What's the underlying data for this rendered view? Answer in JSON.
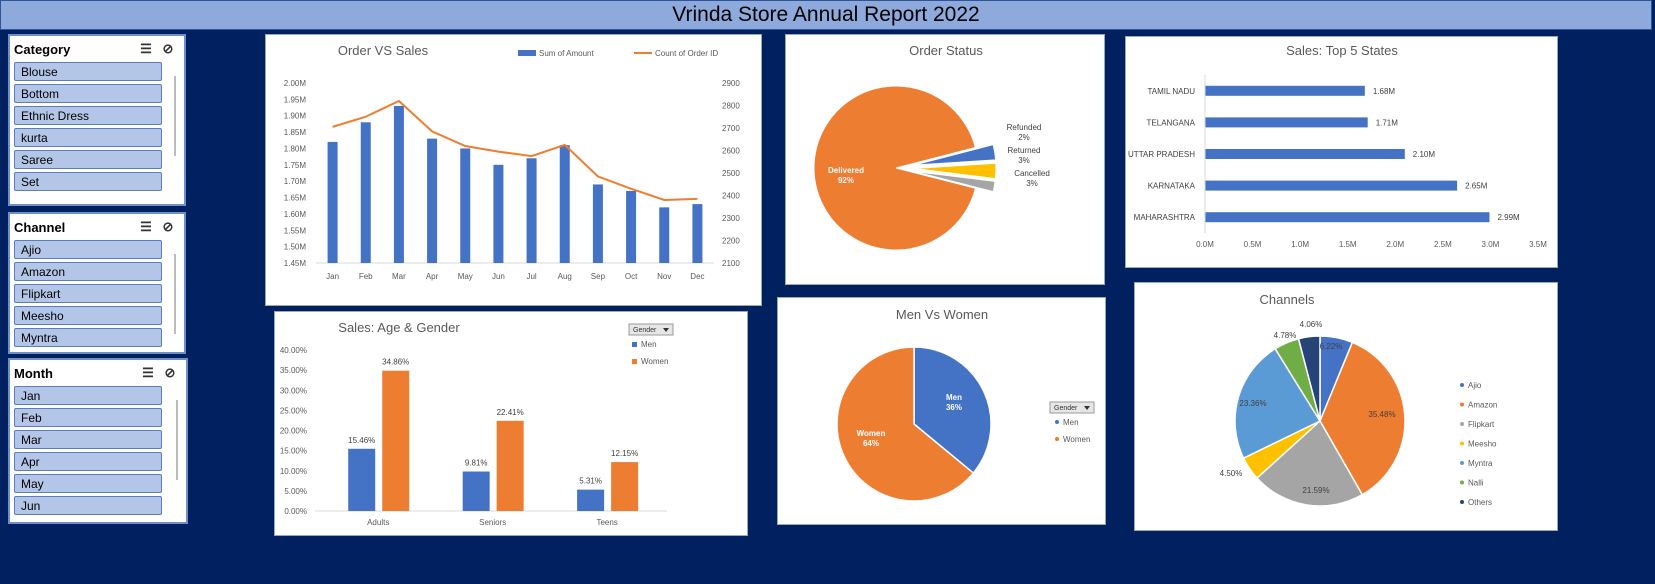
{
  "report_title": "Vrinda Store Annual Report 2022",
  "slicers": [
    {
      "title": "Category",
      "items": [
        "Blouse",
        "Bottom",
        "Ethnic Dress",
        "kurta",
        "Saree",
        "Set"
      ]
    },
    {
      "title": "Channel",
      "items": [
        "Ajio",
        "Amazon",
        "Flipkart",
        "Meesho",
        "Myntra"
      ]
    },
    {
      "title": "Month",
      "items": [
        "Jan",
        "Feb",
        "Mar",
        "Apr",
        "May",
        "Jun"
      ]
    }
  ],
  "slicer_icons": {
    "multi_select": "multi-select-icon",
    "clear_filter": "clear-filter-icon"
  },
  "colors": {
    "blue": "#4472C4",
    "orange": "#ED7D31",
    "gray": "#A5A5A5",
    "yellow": "#FFC000",
    "lightblue": "#5B9BD5",
    "green": "#70AD47",
    "navy": "#264478"
  },
  "chart_data": [
    {
      "id": "order_vs_sales",
      "type": "bar",
      "title": "Order VS Sales",
      "categories": [
        "Jan",
        "Feb",
        "Mar",
        "Apr",
        "May",
        "Jun",
        "Jul",
        "Aug",
        "Sep",
        "Oct",
        "Nov",
        "Dec"
      ],
      "series": [
        {
          "name": "Sum of Amount",
          "type": "bar",
          "axis": "left",
          "values": [
            1.82,
            1.88,
            1.93,
            1.83,
            1.8,
            1.75,
            1.77,
            1.81,
            1.69,
            1.67,
            1.62,
            1.63
          ]
        },
        {
          "name": "Count of Order ID",
          "type": "line",
          "axis": "right",
          "values": [
            2705,
            2750,
            2820,
            2685,
            2620,
            2595,
            2575,
            2625,
            2485,
            2430,
            2380,
            2385
          ]
        }
      ],
      "y_ticks": [
        "2.00M",
        "1.95M",
        "1.90M",
        "1.85M",
        "1.80M",
        "1.75M",
        "1.70M",
        "1.65M",
        "1.60M",
        "1.55M",
        "1.50M",
        "1.45M"
      ],
      "ylim": [
        1.45,
        2.0
      ],
      "y2_ticks": [
        "2900",
        "2800",
        "2700",
        "2600",
        "2500",
        "2400",
        "2300",
        "2200",
        "2100"
      ],
      "y2lim": [
        2100,
        2900
      ],
      "legend": "top-right"
    },
    {
      "id": "order_status",
      "type": "pie",
      "title": "Order Status",
      "slices": [
        {
          "name": "Delivered",
          "value": 92,
          "label": "92%"
        },
        {
          "name": "Refunded",
          "value": 2,
          "label": "2%"
        },
        {
          "name": "Returned",
          "value": 3,
          "label": "3%"
        },
        {
          "name": "Cancelled",
          "value": 3,
          "label": "3%"
        }
      ]
    },
    {
      "id": "top_states",
      "type": "bar",
      "orientation": "horizontal",
      "title": "Sales: Top 5 States",
      "categories": [
        "TAMIL NADU",
        "TELANGANA",
        "UTTAR PRADESH",
        "KARNATAKA",
        "MAHARASHTRA"
      ],
      "values": [
        1.68,
        1.71,
        2.1,
        2.65,
        2.99
      ],
      "data_labels": [
        "1.68M",
        "1.71M",
        "2.10M",
        "2.65M",
        "2.99M"
      ],
      "x_ticks": [
        "0.0M",
        "0.5M",
        "1.0M",
        "1.5M",
        "2.0M",
        "2.5M",
        "3.0M",
        "3.5M"
      ],
      "xlim": [
        0,
        3.5
      ]
    },
    {
      "id": "age_gender",
      "type": "bar",
      "title": "Sales: Age & Gender",
      "categories": [
        "Adults",
        "Seniors",
        "Teens"
      ],
      "series": [
        {
          "name": "Men",
          "values": [
            15.46,
            9.81,
            5.31
          ],
          "labels": [
            "15.46%",
            "9.81%",
            "5.31%"
          ]
        },
        {
          "name": "Women",
          "values": [
            34.86,
            22.41,
            12.15
          ],
          "labels": [
            "34.86%",
            "22.41%",
            "12.15%"
          ]
        }
      ],
      "y_ticks": [
        "40.00%",
        "35.00%",
        "30.00%",
        "25.00%",
        "20.00%",
        "15.00%",
        "10.00%",
        "5.00%",
        "0.00%"
      ],
      "ylim": [
        0,
        40
      ],
      "filter_label": "Gender",
      "legend": "top-right"
    },
    {
      "id": "men_vs_women",
      "type": "pie",
      "title": "Men Vs Women",
      "slices": [
        {
          "name": "Men",
          "value": 36,
          "label": "36%"
        },
        {
          "name": "Women",
          "value": 64,
          "label": "64%"
        }
      ],
      "filter_label": "Gender",
      "legend": "right"
    },
    {
      "id": "channels",
      "type": "pie",
      "title": "Channels",
      "slices": [
        {
          "name": "Ajio",
          "value": 6.22,
          "label": "6.22%"
        },
        {
          "name": "Amazon",
          "value": 35.48,
          "label": "35.48%"
        },
        {
          "name": "Flipkart",
          "value": 21.59,
          "label": "21.59%"
        },
        {
          "name": "Meesho",
          "value": 4.5,
          "label": "4.50%"
        },
        {
          "name": "Myntra",
          "value": 23.36,
          "label": "23.36%"
        },
        {
          "name": "Nalli",
          "value": 4.78,
          "label": "4.78%"
        },
        {
          "name": "Others",
          "value": 4.06,
          "label": "4.06%"
        }
      ],
      "legend": "right"
    }
  ]
}
